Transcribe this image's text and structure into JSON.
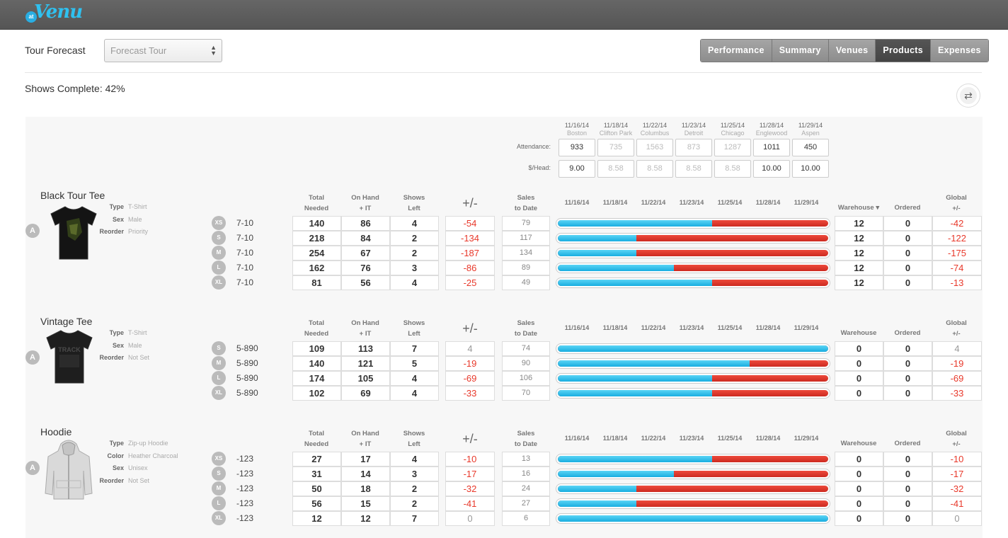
{
  "app": {
    "logo_badge": "at",
    "logo_text": "Venu",
    "accent": "#2fc1f0"
  },
  "header": {
    "label": "Tour Forecast",
    "select_value": "Forecast Tour",
    "tabs": [
      {
        "label": "Performance"
      },
      {
        "label": "Summary"
      },
      {
        "label": "Venues"
      },
      {
        "label": "Products",
        "active": true
      },
      {
        "label": "Expenses"
      }
    ]
  },
  "shows_complete": "Shows Complete: 42%",
  "venues": [
    {
      "date": "11/16/14",
      "city": "Boston",
      "attendance": "933",
      "per_head": "9.00",
      "done": true
    },
    {
      "date": "11/18/14",
      "city": "Clifton Park",
      "attendance": "735",
      "per_head": "8.58",
      "done": false
    },
    {
      "date": "11/22/14",
      "city": "Columbus",
      "attendance": "1563",
      "per_head": "8.58",
      "done": false
    },
    {
      "date": "11/23/14",
      "city": "Detroit",
      "attendance": "873",
      "per_head": "8.58",
      "done": false
    },
    {
      "date": "11/25/14",
      "city": "Chicago",
      "attendance": "1287",
      "per_head": "8.58",
      "done": false
    },
    {
      "date": "11/28/14",
      "city": "Englewood",
      "attendance": "1011",
      "per_head": "10.00",
      "done": true
    },
    {
      "date": "11/29/14",
      "city": "Aspen",
      "attendance": "450",
      "per_head": "10.00",
      "done": true
    }
  ],
  "venue_row_labels": {
    "attendance": "Attendance:",
    "per_head": "$/Head:"
  },
  "columns": {
    "total_needed": [
      "Total",
      "Needed"
    ],
    "on_hand": [
      "On Hand",
      "+ IT"
    ],
    "shows_left": [
      "Shows",
      "Left"
    ],
    "plusminus": "+/-",
    "sales": [
      "Sales",
      "to Date"
    ],
    "warehouse": "Warehouse",
    "warehouse_sorted": "Warehouse ▾",
    "ordered": "Ordered",
    "global": [
      "Global",
      "+/-"
    ]
  },
  "products": [
    {
      "name": "Black Tour Tee",
      "badge": "A",
      "image": "tshirt-black-print",
      "attrs": [
        {
          "k": "Type",
          "v": "T-Shirt"
        },
        {
          "k": "Sex",
          "v": "Male"
        },
        {
          "k": "Reorder",
          "v": "Priority"
        }
      ],
      "sorted": true,
      "rows": [
        {
          "size": "XS",
          "range": "7-10",
          "total": "140",
          "onhand": "86",
          "left": "4",
          "pm": "-54",
          "sales": "79",
          "fill": 0.57,
          "wh": "12",
          "ord": "0",
          "global": "-42"
        },
        {
          "size": "S",
          "range": "7-10",
          "total": "218",
          "onhand": "84",
          "left": "2",
          "pm": "-134",
          "sales": "117",
          "fill": 0.29,
          "wh": "12",
          "ord": "0",
          "global": "-122"
        },
        {
          "size": "M",
          "range": "7-10",
          "total": "254",
          "onhand": "67",
          "left": "2",
          "pm": "-187",
          "sales": "134",
          "fill": 0.29,
          "wh": "12",
          "ord": "0",
          "global": "-175"
        },
        {
          "size": "L",
          "range": "7-10",
          "total": "162",
          "onhand": "76",
          "left": "3",
          "pm": "-86",
          "sales": "89",
          "fill": 0.43,
          "wh": "12",
          "ord": "0",
          "global": "-74"
        },
        {
          "size": "XL",
          "range": "7-10",
          "total": "81",
          "onhand": "56",
          "left": "4",
          "pm": "-25",
          "sales": "49",
          "fill": 0.57,
          "wh": "12",
          "ord": "0",
          "global": "-13"
        }
      ]
    },
    {
      "name": "Vintage Tee",
      "badge": "A",
      "image": "tshirt-vintage",
      "image_text": "TRACK",
      "attrs": [
        {
          "k": "Type",
          "v": "T-Shirt"
        },
        {
          "k": "Sex",
          "v": "Male"
        },
        {
          "k": "Reorder",
          "v": "Not Set"
        }
      ],
      "sorted": false,
      "rows": [
        {
          "size": "S",
          "range": "5-890",
          "total": "109",
          "onhand": "113",
          "left": "7",
          "pm": "4",
          "sales": "74",
          "fill": 1.0,
          "wh": "0",
          "ord": "0",
          "global": "4"
        },
        {
          "size": "M",
          "range": "5-890",
          "total": "140",
          "onhand": "121",
          "left": "5",
          "pm": "-19",
          "sales": "90",
          "fill": 0.71,
          "wh": "0",
          "ord": "0",
          "global": "-19"
        },
        {
          "size": "L",
          "range": "5-890",
          "total": "174",
          "onhand": "105",
          "left": "4",
          "pm": "-69",
          "sales": "106",
          "fill": 0.57,
          "wh": "0",
          "ord": "0",
          "global": "-69"
        },
        {
          "size": "XL",
          "range": "5-890",
          "total": "102",
          "onhand": "69",
          "left": "4",
          "pm": "-33",
          "sales": "70",
          "fill": 0.57,
          "wh": "0",
          "ord": "0",
          "global": "-33"
        }
      ]
    },
    {
      "name": "Hoodie",
      "badge": "A",
      "image": "hoodie-heather",
      "attrs": [
        {
          "k": "Type",
          "v": "Zip-up Hoodie"
        },
        {
          "k": "Color",
          "v": "Heather Charcoal"
        },
        {
          "k": "Sex",
          "v": "Unisex"
        },
        {
          "k": "Reorder",
          "v": "Not Set"
        }
      ],
      "sorted": false,
      "rows": [
        {
          "size": "XS",
          "range": "-123",
          "total": "27",
          "onhand": "17",
          "left": "4",
          "pm": "-10",
          "sales": "13",
          "fill": 0.57,
          "wh": "0",
          "ord": "0",
          "global": "-10"
        },
        {
          "size": "S",
          "range": "-123",
          "total": "31",
          "onhand": "14",
          "left": "3",
          "pm": "-17",
          "sales": "16",
          "fill": 0.43,
          "wh": "0",
          "ord": "0",
          "global": "-17"
        },
        {
          "size": "M",
          "range": "-123",
          "total": "50",
          "onhand": "18",
          "left": "2",
          "pm": "-32",
          "sales": "24",
          "fill": 0.29,
          "wh": "0",
          "ord": "0",
          "global": "-32"
        },
        {
          "size": "L",
          "range": "-123",
          "total": "56",
          "onhand": "15",
          "left": "2",
          "pm": "-41",
          "sales": "27",
          "fill": 0.29,
          "wh": "0",
          "ord": "0",
          "global": "-41"
        },
        {
          "size": "XL",
          "range": "-123",
          "total": "12",
          "onhand": "12",
          "left": "7",
          "pm": "0",
          "sales": "6",
          "fill": 1.0,
          "wh": "0",
          "ord": "0",
          "global": "0"
        }
      ]
    }
  ]
}
